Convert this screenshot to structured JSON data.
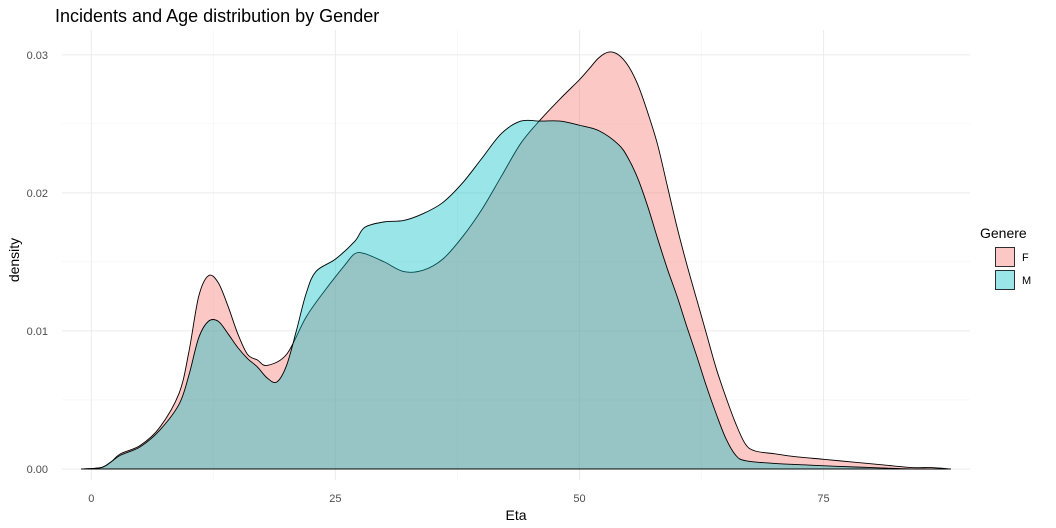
{
  "chart_data": {
    "type": "area",
    "title": "Incidents and Age distribution by Gender",
    "xlabel": "Eta",
    "ylabel": "density",
    "xlim": [
      -3,
      90
    ],
    "ylim": [
      -0.0008,
      0.0318
    ],
    "x_ticks": [
      0,
      25,
      50,
      75
    ],
    "y_ticks": [
      0.0,
      0.01,
      0.02,
      0.03
    ],
    "x_tick_labels": [
      "0",
      "25",
      "50",
      "75"
    ],
    "y_tick_labels": [
      "0.00",
      "0.01",
      "0.02",
      "0.03"
    ],
    "grid": true,
    "legend": {
      "title": "Genere",
      "position": "right"
    },
    "series": [
      {
        "name": "F",
        "color": "#F8766D",
        "fill_opacity": 0.4,
        "points": [
          [
            -1,
            0.0
          ],
          [
            1,
            0.0001
          ],
          [
            2,
            0.0005
          ],
          [
            3,
            0.0011
          ],
          [
            5,
            0.0017
          ],
          [
            7,
            0.003
          ],
          [
            9,
            0.0055
          ],
          [
            10,
            0.0085
          ],
          [
            11,
            0.0125
          ],
          [
            12,
            0.014
          ],
          [
            13,
            0.0135
          ],
          [
            14,
            0.0118
          ],
          [
            15,
            0.0098
          ],
          [
            16,
            0.0083
          ],
          [
            17,
            0.0079
          ],
          [
            18,
            0.0075
          ],
          [
            20,
            0.0083
          ],
          [
            22,
            0.011
          ],
          [
            24,
            0.013
          ],
          [
            26,
            0.0148
          ],
          [
            27,
            0.0156
          ],
          [
            28,
            0.0156
          ],
          [
            30,
            0.015
          ],
          [
            32,
            0.0143
          ],
          [
            34,
            0.0144
          ],
          [
            36,
            0.0152
          ],
          [
            38,
            0.0168
          ],
          [
            40,
            0.0188
          ],
          [
            42,
            0.0212
          ],
          [
            44,
            0.0236
          ],
          [
            46,
            0.0253
          ],
          [
            48,
            0.0268
          ],
          [
            50,
            0.0282
          ],
          [
            51,
            0.029
          ],
          [
            52,
            0.0298
          ],
          [
            53,
            0.0302
          ],
          [
            54,
            0.03
          ],
          [
            55,
            0.0292
          ],
          [
            56,
            0.0278
          ],
          [
            57,
            0.0258
          ],
          [
            58,
            0.0235
          ],
          [
            59,
            0.0205
          ],
          [
            60,
            0.0175
          ],
          [
            61,
            0.0148
          ],
          [
            62,
            0.0123
          ],
          [
            63,
            0.0098
          ],
          [
            64,
            0.0073
          ],
          [
            65,
            0.0052
          ],
          [
            66,
            0.0033
          ],
          [
            67,
            0.0018
          ],
          [
            68,
            0.0013
          ],
          [
            70,
            0.0011
          ],
          [
            72,
            0.0009
          ],
          [
            75,
            0.0007
          ],
          [
            78,
            0.0005
          ],
          [
            81,
            0.0003
          ],
          [
            84,
            0.0001
          ],
          [
            86,
            0.0001
          ],
          [
            88,
            0.0
          ]
        ]
      },
      {
        "name": "M",
        "color": "#00BFC4",
        "fill_opacity": 0.4,
        "points": [
          [
            -1,
            0.0
          ],
          [
            1,
            0.0001
          ],
          [
            2,
            0.0005
          ],
          [
            3,
            0.001
          ],
          [
            5,
            0.0016
          ],
          [
            7,
            0.0028
          ],
          [
            9,
            0.0047
          ],
          [
            10,
            0.0068
          ],
          [
            11,
            0.0095
          ],
          [
            12,
            0.0107
          ],
          [
            13,
            0.0107
          ],
          [
            14,
            0.0098
          ],
          [
            15,
            0.0088
          ],
          [
            16,
            0.008
          ],
          [
            17,
            0.0074
          ],
          [
            18,
            0.0066
          ],
          [
            19,
            0.0063
          ],
          [
            20,
            0.0075
          ],
          [
            21,
            0.01
          ],
          [
            22,
            0.0127
          ],
          [
            23,
            0.0143
          ],
          [
            25,
            0.0152
          ],
          [
            27,
            0.0165
          ],
          [
            28,
            0.0175
          ],
          [
            30,
            0.0179
          ],
          [
            32,
            0.018
          ],
          [
            34,
            0.0185
          ],
          [
            36,
            0.0193
          ],
          [
            38,
            0.0207
          ],
          [
            40,
            0.0225
          ],
          [
            42,
            0.0243
          ],
          [
            44,
            0.0252
          ],
          [
            46,
            0.0252
          ],
          [
            48,
            0.0252
          ],
          [
            50,
            0.0249
          ],
          [
            52,
            0.0245
          ],
          [
            54,
            0.0235
          ],
          [
            55,
            0.0225
          ],
          [
            56,
            0.021
          ],
          [
            57,
            0.019
          ],
          [
            58,
            0.0167
          ],
          [
            59,
            0.0145
          ],
          [
            60,
            0.0125
          ],
          [
            61,
            0.0103
          ],
          [
            62,
            0.0082
          ],
          [
            63,
            0.006
          ],
          [
            64,
            0.004
          ],
          [
            65,
            0.0022
          ],
          [
            66,
            0.001
          ],
          [
            67,
            0.0006
          ],
          [
            70,
            0.0004
          ],
          [
            73,
            0.0003
          ],
          [
            76,
            0.0002
          ],
          [
            80,
            0.0001
          ],
          [
            84,
            0.0
          ],
          [
            88,
            0.0
          ]
        ]
      }
    ]
  }
}
